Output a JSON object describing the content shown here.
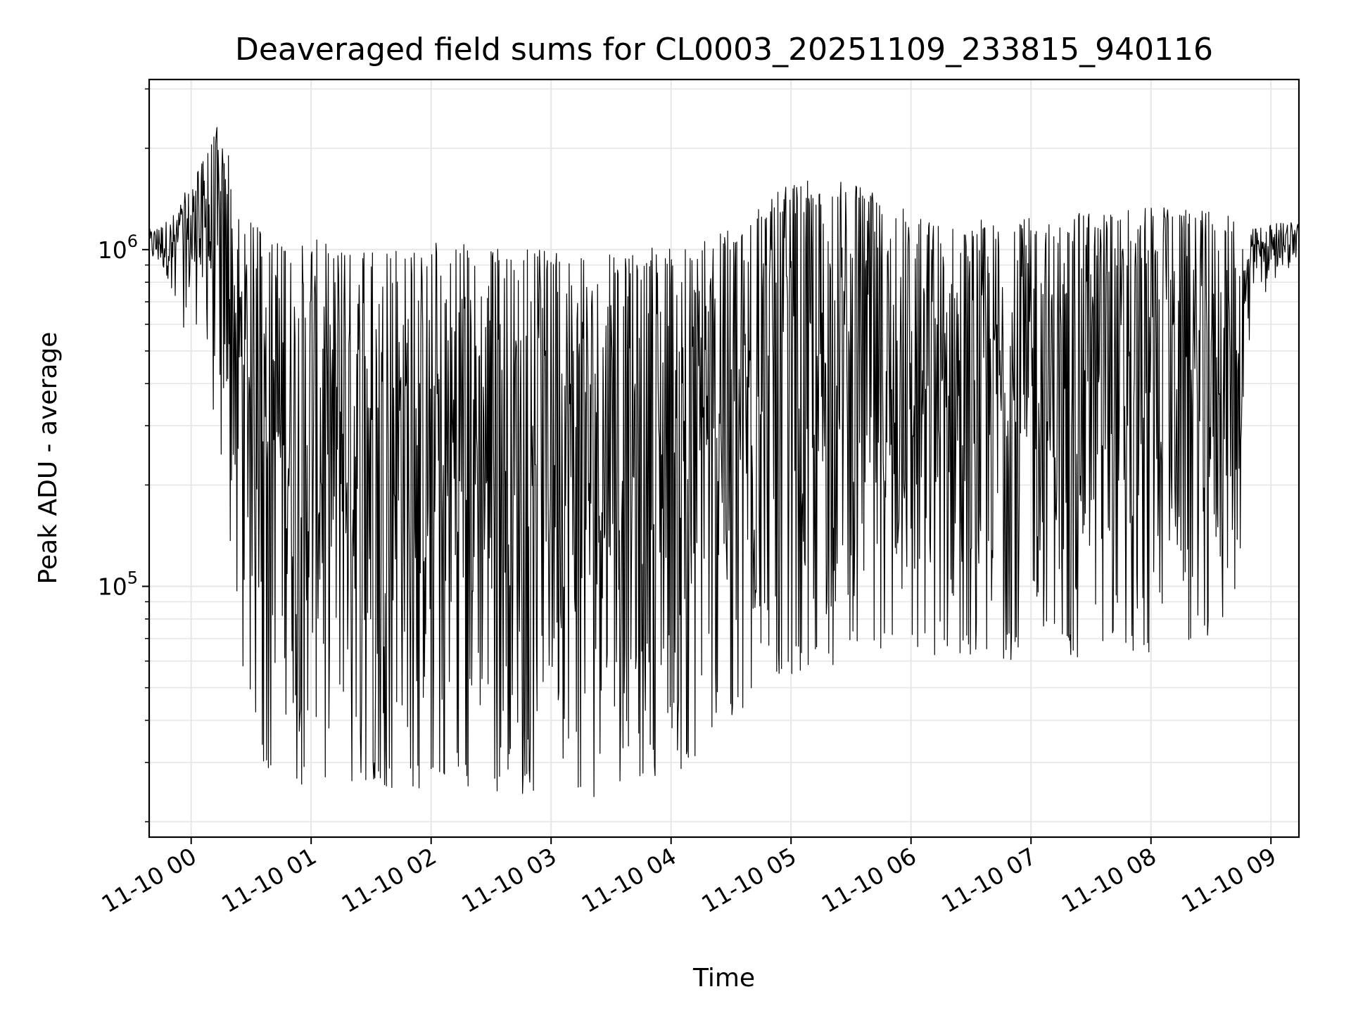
{
  "chart_data": {
    "type": "line",
    "title": "Deaveraged field sums for CL0003_20251109_233815_940116",
    "xlabel": "Time",
    "ylabel": "Peak ADU - average",
    "y_scale": "log",
    "xlim": [
      "2025-11-09 23:39",
      "2025-11-10 09:14"
    ],
    "ylim": [
      18000,
      3200000
    ],
    "grid": true,
    "line_color": "#000000",
    "grid_color": "#e6e6e6",
    "x_ticks": [
      {
        "label": "11-10 00",
        "value": "2025-11-10 00:00"
      },
      {
        "label": "11-10 01",
        "value": "2025-11-10 01:00"
      },
      {
        "label": "11-10 02",
        "value": "2025-11-10 02:00"
      },
      {
        "label": "11-10 03",
        "value": "2025-11-10 03:00"
      },
      {
        "label": "11-10 04",
        "value": "2025-11-10 04:00"
      },
      {
        "label": "11-10 05",
        "value": "2025-11-10 05:00"
      },
      {
        "label": "11-10 06",
        "value": "2025-11-10 06:00"
      },
      {
        "label": "11-10 07",
        "value": "2025-11-10 07:00"
      },
      {
        "label": "11-10 08",
        "value": "2025-11-10 08:00"
      },
      {
        "label": "11-10 09",
        "value": "2025-11-10 09:00"
      }
    ],
    "y_ticks": [
      {
        "base": "10",
        "exp": "5",
        "value": 100000
      },
      {
        "base": "10",
        "exp": "6",
        "value": 1000000
      }
    ],
    "envelope": {
      "times": [
        "2025-11-09 23:39",
        "2025-11-09 23:50",
        "2025-11-10 00:05",
        "2025-11-10 00:12",
        "2025-11-10 00:18",
        "2025-11-10 00:25",
        "2025-11-10 00:35",
        "2025-11-10 00:50",
        "2025-11-10 01:15",
        "2025-11-10 01:45",
        "2025-11-10 02:15",
        "2025-11-10 02:45",
        "2025-11-10 03:15",
        "2025-11-10 03:35",
        "2025-11-10 04:00",
        "2025-11-10 04:30",
        "2025-11-10 05:00",
        "2025-11-10 05:30",
        "2025-11-10 06:00",
        "2025-11-10 06:30",
        "2025-11-10 07:00",
        "2025-11-10 07:30",
        "2025-11-10 08:00",
        "2025-11-10 08:30",
        "2025-11-10 08:45",
        "2025-11-10 08:50",
        "2025-11-10 09:00",
        "2025-11-10 09:14"
      ],
      "upper": [
        1150000,
        1250000,
        1800000,
        2400000,
        2000000,
        1300000,
        1150000,
        1100000,
        1050000,
        1050000,
        1050000,
        1000000,
        1000000,
        950000,
        1050000,
        1150000,
        1600000,
        1600000,
        1300000,
        1250000,
        1250000,
        1300000,
        1350000,
        1300000,
        1250000,
        1150000,
        1200000,
        1250000
      ],
      "lower": [
        900000,
        800000,
        550000,
        420000,
        200000,
        110000,
        60000,
        35000,
        33000,
        32000,
        31000,
        30000,
        30000,
        29000,
        32000,
        45000,
        60000,
        70000,
        70000,
        68000,
        68000,
        70000,
        70000,
        80000,
        110000,
        800000,
        850000,
        900000
      ],
      "min_dips": [
        900000,
        700000,
        400000,
        300000,
        160000,
        60000,
        30000,
        25000,
        26000,
        25000,
        25000,
        24000,
        24000,
        23000,
        26000,
        40000,
        55000,
        60000,
        62000,
        60000,
        60000,
        62000,
        60000,
        70000,
        100000,
        700000,
        750000,
        850000
      ]
    }
  }
}
